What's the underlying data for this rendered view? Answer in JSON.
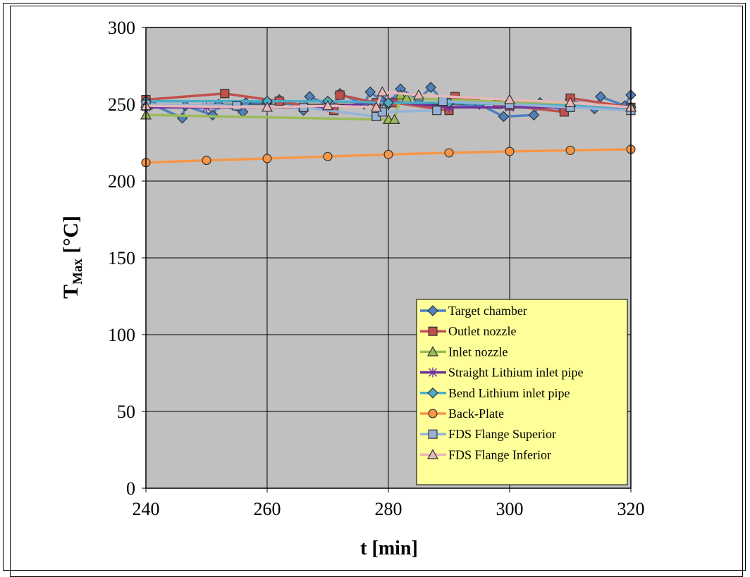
{
  "chart_data": {
    "type": "line",
    "xlabel": "t [min]",
    "ylabel_main": "T",
    "ylabel_sub": "Max",
    "ylabel_unit": " [°C]",
    "xlim": [
      240,
      320
    ],
    "ylim": [
      0,
      300
    ],
    "x_ticks": [
      240,
      260,
      280,
      300,
      320
    ],
    "y_ticks": [
      0,
      50,
      100,
      150,
      200,
      250,
      300
    ],
    "grid": true,
    "plot_background": "#c0c0c0",
    "legend_placement": "bottom-right",
    "legend_background": "#ffff99",
    "series": [
      {
        "name": "Target chamber",
        "color": "#4f81bd",
        "marker": "diamond",
        "marker_fill": "#4f81bd",
        "points": [
          [
            240,
            248
          ],
          [
            241,
            250
          ],
          [
            246,
            241
          ],
          [
            246.5,
            249
          ],
          [
            251,
            243
          ],
          [
            252,
            250
          ],
          [
            256,
            245
          ],
          [
            256.5,
            251
          ],
          [
            260,
            251
          ],
          [
            262,
            253
          ],
          [
            266,
            246
          ],
          [
            267,
            255
          ],
          [
            271,
            248
          ],
          [
            272,
            257
          ],
          [
            276,
            250
          ],
          [
            277,
            258
          ],
          [
            279,
            252
          ],
          [
            280,
            250
          ],
          [
            282,
            260
          ],
          [
            285,
            253
          ],
          [
            287,
            261
          ],
          [
            290,
            248
          ],
          [
            295,
            250
          ],
          [
            299,
            242
          ],
          [
            304,
            243
          ],
          [
            305,
            251
          ],
          [
            309,
            246
          ],
          [
            310,
            253
          ],
          [
            314,
            247
          ],
          [
            315,
            255
          ],
          [
            319,
            249
          ],
          [
            320,
            256
          ]
        ]
      },
      {
        "name": "Outlet nozzle",
        "color": "#c0504d",
        "marker": "square",
        "marker_fill": "#c0504d",
        "points": [
          [
            240,
            253
          ],
          [
            253,
            257
          ],
          [
            262,
            252
          ],
          [
            271,
            246
          ],
          [
            272,
            256
          ],
          [
            278,
            251
          ],
          [
            281,
            251
          ],
          [
            288,
            247
          ],
          [
            290,
            246
          ],
          [
            291,
            255
          ],
          [
            298,
            250
          ],
          [
            300,
            249
          ],
          [
            309,
            245
          ],
          [
            310,
            254
          ],
          [
            320,
            248
          ]
        ]
      },
      {
        "name": "Inlet nozzle",
        "color": "#9bbb59",
        "marker": "triangle",
        "marker_fill": "#9bbb59",
        "points": [
          [
            240,
            243
          ],
          [
            280,
            240
          ],
          [
            281,
            240
          ],
          [
            282,
            256
          ],
          [
            283,
            254
          ],
          [
            320,
            248
          ]
        ]
      },
      {
        "name": "Straight Lithium inlet pipe",
        "color": "#7030a0",
        "marker": "star",
        "marker_fill": "none",
        "points": [
          [
            240,
            248
          ],
          [
            250,
            248
          ],
          [
            260,
            248
          ],
          [
            270,
            248
          ],
          [
            280,
            252
          ],
          [
            290,
            248
          ],
          [
            300,
            248
          ],
          [
            310,
            248
          ],
          [
            320,
            248
          ]
        ]
      },
      {
        "name": "Bend Lithium inlet pipe",
        "color": "#4bacc6",
        "marker": "diamond",
        "marker_fill": "#4bacc6",
        "points": [
          [
            240,
            252
          ],
          [
            260,
            252
          ],
          [
            270,
            252
          ],
          [
            280,
            251
          ],
          [
            290,
            251
          ],
          [
            300,
            250
          ],
          [
            310,
            249
          ],
          [
            320,
            248
          ]
        ]
      },
      {
        "name": "Back-Plate",
        "color": "#f79646",
        "marker": "circle",
        "marker_fill": "#f79646",
        "points": [
          [
            240,
            212
          ],
          [
            250,
            213.5
          ],
          [
            260,
            214.7
          ],
          [
            270,
            216
          ],
          [
            280,
            217.3
          ],
          [
            290,
            218.4
          ],
          [
            300,
            219.3
          ],
          [
            310,
            220
          ],
          [
            320,
            220.7
          ]
        ]
      },
      {
        "name": "FDS Flange Superior",
        "color": "#95b3d7",
        "marker": "square",
        "marker_fill": "#95b3d7",
        "points": [
          [
            240,
            250
          ],
          [
            255,
            249
          ],
          [
            266,
            248
          ],
          [
            278,
            242
          ],
          [
            279,
            245
          ],
          [
            288,
            246
          ],
          [
            289,
            252
          ],
          [
            300,
            250
          ],
          [
            310,
            248
          ],
          [
            320,
            246
          ]
        ]
      },
      {
        "name": "FDS Flange Inferior",
        "color": "#e6b9b8",
        "marker": "triangle",
        "marker_fill": "#e6b9b8",
        "points": [
          [
            240,
            249
          ],
          [
            260,
            248
          ],
          [
            270,
            249
          ],
          [
            278,
            248
          ],
          [
            279,
            258
          ],
          [
            285,
            256
          ],
          [
            300,
            253
          ],
          [
            310,
            251
          ],
          [
            320,
            248
          ]
        ]
      }
    ]
  }
}
